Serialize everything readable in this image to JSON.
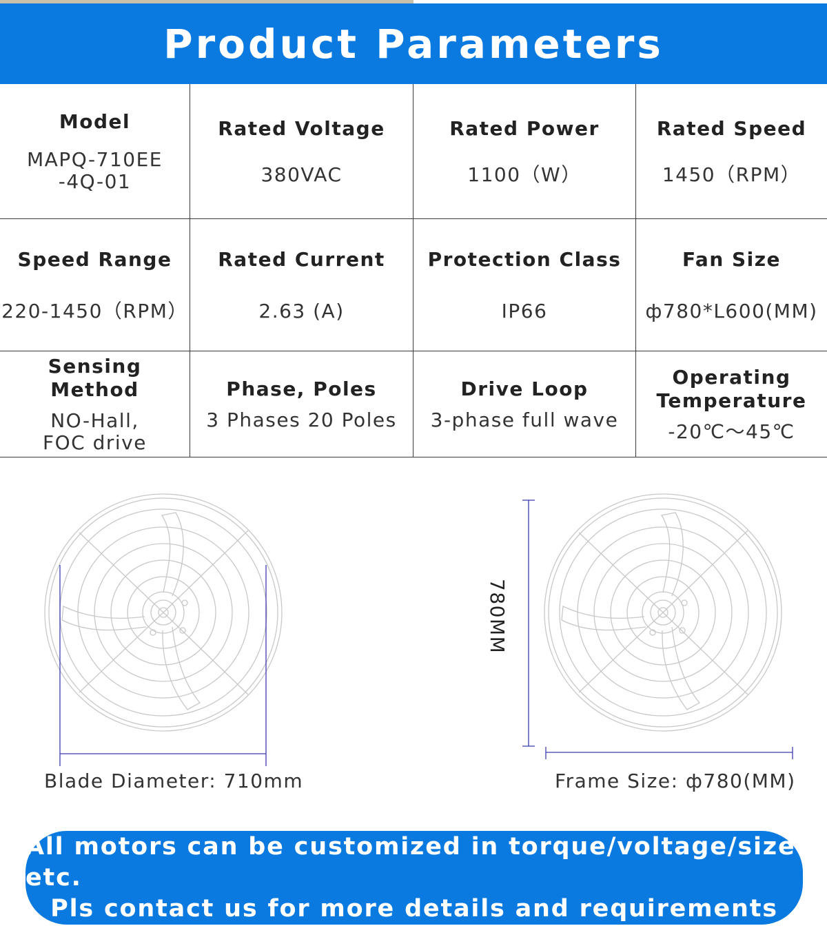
{
  "banner": {
    "title": "Product Parameters"
  },
  "specs": [
    [
      {
        "label": "Model",
        "value": "MAPQ-710EE\n-4Q-01"
      },
      {
        "label": "Rated Voltage",
        "value": "380VAC"
      },
      {
        "label": "Rated Power",
        "value": "1100（W）"
      },
      {
        "label": "Rated Speed",
        "value": "1450（RPM）"
      }
    ],
    [
      {
        "label": "Speed Range",
        "value": "220-1450（RPM）"
      },
      {
        "label": "Rated Current",
        "value": "2.63 (A)"
      },
      {
        "label": "Protection Class",
        "value": "IP66"
      },
      {
        "label": "Fan Size",
        "value": "ф780*L600(MM)"
      }
    ],
    [
      {
        "label": "Sensing Method",
        "value": "NO-Hall,\nFOC drive"
      },
      {
        "label": "Phase, Poles",
        "value": "3 Phases 20 Poles"
      },
      {
        "label": "Drive Loop",
        "value": "3-phase full wave"
      },
      {
        "label": "Operating\nTemperature",
        "value": "-20℃～45℃"
      }
    ]
  ],
  "diagrams": {
    "left_caption": "Blade Diameter: 710mm",
    "right_caption": "Frame Size: ф780(MM)",
    "vertical_dimension": "780MM",
    "dimension_color": "#3b3bb0",
    "drawing_color": "#c8c8c8"
  },
  "footer": {
    "line1": "All motors can be customized in torque/voltage/size etc.",
    "line2": "Pls contact us for more details and requirements"
  },
  "colors": {
    "brand_blue": "#0a7ae0",
    "grid_line": "#3a3a3a"
  }
}
